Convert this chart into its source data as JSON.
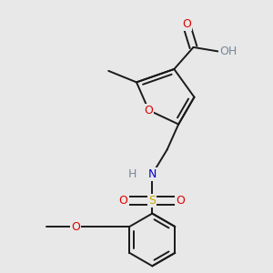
{
  "background_color": "#e8e8e8",
  "bond_color": "#1a1a1a",
  "atom_colors": {
    "O": "#dd0000",
    "N": "#0000cc",
    "S": "#ccaa00",
    "H_gray": "#778899",
    "C": "#1a1a1a"
  },
  "font_size": 9.0,
  "line_width": 1.4,
  "figsize": [
    3.0,
    3.0
  ],
  "dpi": 100
}
